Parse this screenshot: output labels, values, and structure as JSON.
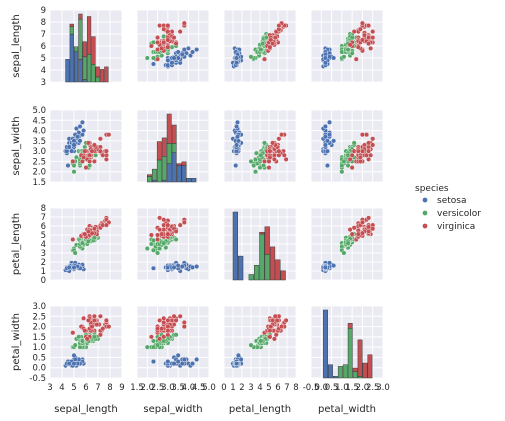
{
  "chart_data": {
    "type": "scatter",
    "title": "",
    "variables": [
      "sepal_length",
      "sepal_width",
      "petal_length",
      "petal_width"
    ],
    "axis_labels": {
      "sepal_length": "sepal_length",
      "sepal_width": "sepal_width",
      "petal_length": "petal_length",
      "petal_width": "petal_width"
    },
    "ranges": {
      "sepal_length": [
        3,
        9
      ],
      "sepal_width": [
        1.5,
        5.0
      ],
      "petal_length": [
        0,
        8
      ],
      "petal_width": [
        -0.5,
        3.0
      ]
    },
    "x_ticks": {
      "sepal_length": [
        "3",
        "4",
        "5",
        "6",
        "7",
        "8",
        "9"
      ],
      "sepal_width": [
        "1.5",
        "2.0",
        "2.5",
        "3.0",
        "3.5",
        "4.0",
        "4.5",
        "5.0"
      ],
      "petal_length": [
        "0",
        "1",
        "2",
        "3",
        "4",
        "5",
        "6",
        "7",
        "8"
      ],
      "petal_width": [
        "-0.5",
        "0.0",
        "0.5",
        "1.0",
        "1.5",
        "2.0",
        "2.5",
        "3.0"
      ]
    },
    "y_ticks": {
      "sepal_length": [
        "3",
        "4",
        "5",
        "6",
        "7",
        "8",
        "9"
      ],
      "sepal_width": [
        "1.5",
        "2.0",
        "2.5",
        "3.0",
        "3.5",
        "4.0",
        "4.5",
        "5.0"
      ],
      "petal_length": [
        "0",
        "1",
        "2",
        "3",
        "4",
        "5",
        "6",
        "7",
        "8"
      ],
      "petal_width": [
        "-0.5",
        "0.0",
        "0.5",
        "1.0",
        "1.5",
        "2.0",
        "2.5",
        "3.0"
      ]
    },
    "grid": true,
    "background": "#EAEAF2",
    "legend": {
      "title": "species",
      "position": "right",
      "entries": [
        "setosa",
        "versicolor",
        "virginica"
      ]
    },
    "species": [
      {
        "name": "setosa",
        "color": "#4C72B0",
        "sepal_length": [
          5.1,
          4.9,
          4.7,
          4.6,
          5.0,
          5.4,
          4.6,
          5.0,
          4.4,
          4.9,
          5.4,
          4.8,
          4.8,
          4.3,
          5.8,
          5.7,
          5.4,
          5.1,
          5.7,
          5.1,
          5.4,
          5.1,
          4.6,
          5.1,
          4.8,
          5.0,
          5.0,
          5.2,
          5.2,
          4.7,
          4.8,
          5.4,
          5.2,
          5.5,
          4.9,
          5.0,
          5.5,
          4.9,
          4.4,
          5.1,
          5.0,
          4.5,
          4.4,
          5.0,
          5.1,
          4.8,
          5.1,
          4.6,
          5.3,
          5.0
        ],
        "sepal_width": [
          3.5,
          3.0,
          3.2,
          3.1,
          3.6,
          3.9,
          3.4,
          3.4,
          2.9,
          3.1,
          3.7,
          3.4,
          3.0,
          3.0,
          4.0,
          4.4,
          3.9,
          3.5,
          3.8,
          3.8,
          3.4,
          3.7,
          3.6,
          3.3,
          3.4,
          3.0,
          3.4,
          3.5,
          3.4,
          3.2,
          3.1,
          3.4,
          4.1,
          4.2,
          3.1,
          3.2,
          3.5,
          3.6,
          3.0,
          3.4,
          3.5,
          2.3,
          3.2,
          3.5,
          3.8,
          3.0,
          3.8,
          3.2,
          3.7,
          3.3
        ],
        "petal_length": [
          1.4,
          1.4,
          1.3,
          1.5,
          1.4,
          1.7,
          1.4,
          1.5,
          1.4,
          1.5,
          1.5,
          1.6,
          1.4,
          1.1,
          1.2,
          1.5,
          1.3,
          1.4,
          1.7,
          1.5,
          1.7,
          1.5,
          1.0,
          1.7,
          1.9,
          1.6,
          1.6,
          1.5,
          1.4,
          1.6,
          1.6,
          1.5,
          1.5,
          1.4,
          1.5,
          1.2,
          1.3,
          1.4,
          1.3,
          1.5,
          1.3,
          1.3,
          1.3,
          1.6,
          1.9,
          1.4,
          1.6,
          1.4,
          1.5,
          1.4
        ],
        "petal_width": [
          0.2,
          0.2,
          0.2,
          0.2,
          0.2,
          0.4,
          0.3,
          0.2,
          0.2,
          0.1,
          0.2,
          0.2,
          0.1,
          0.1,
          0.2,
          0.4,
          0.4,
          0.3,
          0.3,
          0.3,
          0.2,
          0.4,
          0.2,
          0.5,
          0.2,
          0.2,
          0.4,
          0.2,
          0.2,
          0.2,
          0.2,
          0.4,
          0.1,
          0.2,
          0.2,
          0.2,
          0.2,
          0.1,
          0.2,
          0.2,
          0.3,
          0.3,
          0.2,
          0.6,
          0.4,
          0.3,
          0.2,
          0.2,
          0.2,
          0.2
        ]
      },
      {
        "name": "versicolor",
        "color": "#55A868",
        "sepal_length": [
          7.0,
          6.4,
          6.9,
          5.5,
          6.5,
          5.7,
          6.3,
          4.9,
          6.6,
          5.2,
          5.0,
          5.9,
          6.0,
          6.1,
          5.6,
          6.7,
          5.6,
          5.8,
          6.2,
          5.6,
          5.9,
          6.1,
          6.3,
          6.1,
          6.4,
          6.6,
          6.8,
          6.7,
          6.0,
          5.7,
          5.5,
          5.5,
          5.8,
          6.0,
          5.4,
          6.0,
          6.7,
          6.3,
          5.6,
          5.5,
          5.5,
          6.1,
          5.8,
          5.0,
          5.6,
          5.7,
          5.7,
          6.2,
          5.1,
          5.7
        ],
        "sepal_width": [
          3.2,
          3.2,
          3.1,
          2.3,
          2.8,
          2.8,
          3.3,
          2.4,
          2.9,
          2.7,
          2.0,
          3.0,
          2.2,
          2.9,
          2.9,
          3.1,
          3.0,
          2.7,
          2.2,
          2.5,
          3.2,
          2.8,
          2.5,
          2.8,
          2.9,
          3.0,
          2.8,
          3.0,
          2.9,
          2.6,
          2.4,
          2.4,
          2.7,
          2.7,
          3.0,
          3.4,
          3.1,
          2.3,
          3.0,
          2.5,
          2.6,
          3.0,
          2.6,
          2.3,
          2.7,
          3.0,
          2.9,
          2.9,
          2.5,
          2.8
        ],
        "petal_length": [
          4.7,
          4.5,
          4.9,
          4.0,
          4.6,
          4.5,
          4.7,
          3.3,
          4.6,
          3.9,
          3.5,
          4.2,
          4.0,
          4.7,
          3.6,
          4.4,
          4.5,
          4.1,
          4.5,
          3.9,
          4.8,
          4.0,
          4.9,
          4.7,
          4.3,
          4.4,
          4.8,
          5.0,
          4.5,
          3.5,
          3.8,
          3.7,
          3.9,
          5.1,
          4.5,
          4.5,
          4.7,
          4.4,
          4.1,
          4.0,
          4.4,
          4.6,
          4.0,
          3.3,
          4.2,
          4.2,
          4.2,
          4.3,
          3.0,
          4.1
        ],
        "petal_width": [
          1.4,
          1.5,
          1.5,
          1.3,
          1.5,
          1.3,
          1.6,
          1.0,
          1.3,
          1.4,
          1.0,
          1.5,
          1.0,
          1.4,
          1.3,
          1.4,
          1.5,
          1.0,
          1.5,
          1.1,
          1.8,
          1.3,
          1.5,
          1.2,
          1.3,
          1.4,
          1.4,
          1.7,
          1.5,
          1.0,
          1.1,
          1.0,
          1.2,
          1.6,
          1.5,
          1.6,
          1.5,
          1.3,
          1.3,
          1.3,
          1.2,
          1.4,
          1.2,
          1.0,
          1.3,
          1.2,
          1.3,
          1.3,
          1.1,
          1.3
        ]
      },
      {
        "name": "virginica",
        "color": "#C44E52",
        "sepal_length": [
          6.3,
          5.8,
          7.1,
          6.3,
          6.5,
          7.6,
          4.9,
          7.3,
          6.7,
          7.2,
          6.5,
          6.4,
          6.8,
          5.7,
          5.8,
          6.4,
          6.5,
          7.7,
          7.7,
          6.0,
          6.9,
          5.6,
          7.7,
          6.3,
          6.7,
          7.2,
          6.2,
          6.1,
          6.4,
          7.2,
          7.4,
          7.9,
          6.4,
          6.3,
          6.1,
          7.7,
          6.3,
          6.4,
          6.0,
          6.9,
          6.7,
          6.9,
          5.8,
          6.8,
          6.7,
          6.7,
          6.3,
          6.5,
          6.2,
          5.9
        ],
        "sepal_width": [
          3.3,
          2.7,
          3.0,
          2.9,
          3.0,
          3.0,
          2.5,
          2.9,
          2.5,
          3.6,
          3.2,
          2.7,
          3.0,
          2.5,
          2.8,
          3.2,
          3.0,
          3.8,
          2.6,
          2.2,
          3.2,
          2.8,
          2.8,
          2.7,
          3.3,
          3.2,
          2.8,
          3.0,
          2.8,
          3.0,
          2.8,
          3.8,
          2.8,
          2.8,
          2.6,
          3.0,
          3.4,
          3.1,
          3.0,
          3.1,
          3.1,
          3.1,
          2.7,
          3.2,
          3.3,
          3.0,
          2.5,
          3.0,
          3.4,
          3.0
        ],
        "petal_length": [
          6.0,
          5.1,
          5.9,
          5.6,
          5.8,
          6.6,
          4.5,
          6.3,
          5.8,
          6.1,
          5.1,
          5.3,
          5.5,
          5.0,
          5.1,
          5.3,
          5.5,
          6.7,
          6.9,
          5.0,
          5.7,
          4.9,
          6.7,
          4.9,
          5.7,
          6.0,
          4.8,
          4.9,
          5.6,
          5.8,
          6.1,
          6.4,
          5.6,
          5.1,
          5.6,
          6.1,
          5.6,
          5.5,
          4.8,
          5.4,
          5.6,
          5.1,
          5.1,
          5.9,
          5.7,
          5.2,
          5.0,
          5.2,
          5.4,
          5.1
        ],
        "petal_width": [
          2.5,
          1.9,
          2.1,
          1.8,
          2.2,
          2.1,
          1.7,
          1.8,
          1.8,
          2.5,
          2.0,
          1.9,
          2.1,
          2.0,
          2.4,
          2.3,
          1.8,
          2.2,
          2.3,
          1.5,
          2.3,
          2.0,
          2.0,
          1.8,
          2.1,
          1.8,
          1.8,
          1.8,
          2.1,
          1.6,
          1.9,
          2.0,
          2.2,
          1.5,
          1.4,
          2.3,
          2.4,
          1.8,
          1.8,
          2.1,
          2.4,
          2.3,
          1.9,
          2.3,
          2.5,
          2.3,
          1.9,
          2.0,
          2.3,
          1.8
        ]
      }
    ]
  }
}
